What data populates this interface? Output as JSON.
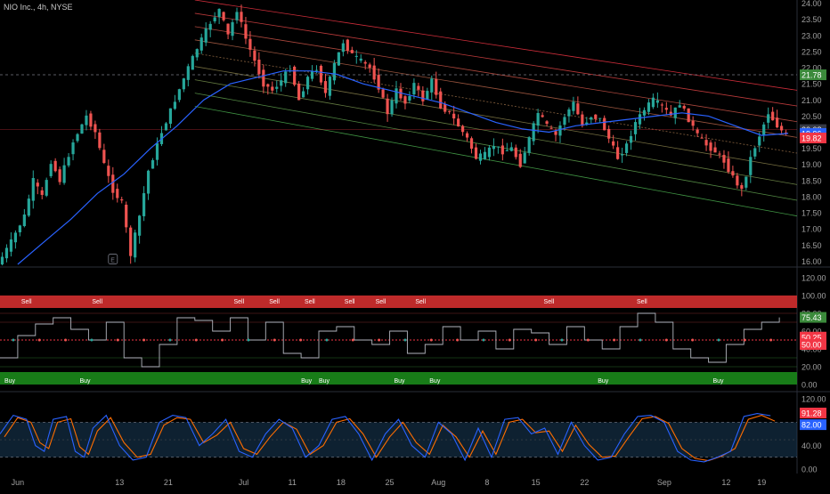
{
  "title": "NIO Inc., 4h, NYSE",
  "colors": {
    "bg": "#000000",
    "up": "#26a69a",
    "down": "#ef5350",
    "ma": "#2962ff",
    "channel_top": "#f23645",
    "channel_bottom": "#4caf50",
    "rsi_line": "#b2b5be",
    "sell_band": "#d32f2f",
    "buy_band": "#1b8a1b",
    "stoch_k": "#2962ff",
    "stoch_d": "#ff6d00"
  },
  "chart_data": [
    {
      "type": "candlestick",
      "name": "price",
      "y_ticks": [
        "24.00",
        "23.50",
        "23.00",
        "22.50",
        "22.00",
        "21.50",
        "21.00",
        "20.50",
        "20.00",
        "19.50",
        "19.00",
        "18.50",
        "18.00",
        "17.50",
        "17.00",
        "16.50",
        "16.00"
      ],
      "ylim": [
        15.9,
        24.1
      ],
      "price_labels": [
        {
          "value": 21.78,
          "text": "21.78",
          "color": "#3b8a3b"
        },
        {
          "value": 20.08,
          "text": "20.08",
          "color": "#363a45"
        },
        {
          "value": 19.96,
          "text": "19.96",
          "color": "#2962ff"
        },
        {
          "value": 19.82,
          "text": "19.82",
          "color": "#f23645"
        }
      ],
      "dashed_level": 21.78,
      "path_points": [
        [
          0,
          15.9
        ],
        [
          3,
          16.6
        ],
        [
          6,
          17.4
        ],
        [
          8,
          18.5
        ],
        [
          10,
          18.0
        ],
        [
          12,
          19.1
        ],
        [
          14,
          18.5
        ],
        [
          17,
          19.7
        ],
        [
          20,
          20.5
        ],
        [
          22,
          20.0
        ],
        [
          24,
          19.0
        ],
        [
          26,
          18.2
        ],
        [
          28,
          17.8
        ],
        [
          30,
          16.2
        ],
        [
          32,
          17.4
        ],
        [
          34,
          18.8
        ],
        [
          37,
          20.0
        ],
        [
          40,
          21.0
        ],
        [
          43,
          22.0
        ],
        [
          45,
          22.6
        ],
        [
          48,
          23.4
        ],
        [
          50,
          23.8
        ],
        [
          52,
          23.0
        ],
        [
          54,
          23.8
        ],
        [
          56,
          22.9
        ],
        [
          58,
          22.2
        ],
        [
          60,
          21.5
        ],
        [
          62,
          21.3
        ],
        [
          64,
          21.6
        ],
        [
          66,
          22.0
        ],
        [
          68,
          21.0
        ],
        [
          70,
          21.7
        ],
        [
          72,
          22.0
        ],
        [
          74,
          21.2
        ],
        [
          76,
          22.1
        ],
        [
          78,
          22.8
        ],
        [
          80,
          22.4
        ],
        [
          82,
          22.2
        ],
        [
          84,
          22.0
        ],
        [
          86,
          21.4
        ],
        [
          88,
          20.6
        ],
        [
          90,
          21.3
        ],
        [
          92,
          20.9
        ],
        [
          94,
          21.5
        ],
        [
          96,
          21.0
        ],
        [
          98,
          21.6
        ],
        [
          100,
          20.8
        ],
        [
          102,
          20.6
        ],
        [
          104,
          20.2
        ],
        [
          106,
          19.8
        ],
        [
          108,
          19.2
        ],
        [
          110,
          19.3
        ],
        [
          112,
          19.6
        ],
        [
          114,
          19.4
        ],
        [
          116,
          19.5
        ],
        [
          118,
          19.0
        ],
        [
          120,
          19.8
        ],
        [
          122,
          20.6
        ],
        [
          124,
          20.2
        ],
        [
          126,
          19.9
        ],
        [
          128,
          20.5
        ],
        [
          130,
          20.9
        ],
        [
          132,
          20.2
        ],
        [
          134,
          20.5
        ],
        [
          136,
          20.4
        ],
        [
          138,
          19.8
        ],
        [
          140,
          19.2
        ],
        [
          142,
          19.6
        ],
        [
          144,
          20.3
        ],
        [
          146,
          20.7
        ],
        [
          148,
          21.0
        ],
        [
          150,
          20.8
        ],
        [
          152,
          20.5
        ],
        [
          154,
          20.9
        ],
        [
          156,
          20.4
        ],
        [
          158,
          19.9
        ],
        [
          160,
          19.6
        ],
        [
          162,
          19.4
        ],
        [
          164,
          19.1
        ],
        [
          166,
          18.6
        ],
        [
          168,
          18.2
        ],
        [
          170,
          19.2
        ],
        [
          172,
          19.9
        ],
        [
          174,
          20.6
        ],
        [
          176,
          20.2
        ],
        [
          178,
          19.9
        ]
      ],
      "ma_points": [
        [
          4,
          15.9
        ],
        [
          10,
          16.6
        ],
        [
          16,
          17.3
        ],
        [
          22,
          18.1
        ],
        [
          28,
          18.7
        ],
        [
          34,
          19.5
        ],
        [
          40,
          20.2
        ],
        [
          46,
          21.0
        ],
        [
          52,
          21.5
        ],
        [
          58,
          21.7
        ],
        [
          64,
          21.9
        ],
        [
          70,
          21.9
        ],
        [
          76,
          21.8
        ],
        [
          82,
          21.5
        ],
        [
          88,
          21.3
        ],
        [
          94,
          21.1
        ],
        [
          100,
          20.9
        ],
        [
          106,
          20.6
        ],
        [
          112,
          20.3
        ],
        [
          118,
          20.1
        ],
        [
          124,
          20.0
        ],
        [
          130,
          20.2
        ],
        [
          136,
          20.3
        ],
        [
          142,
          20.4
        ],
        [
          148,
          20.5
        ],
        [
          154,
          20.6
        ],
        [
          160,
          20.5
        ],
        [
          166,
          20.2
        ],
        [
          172,
          19.9
        ],
        [
          178,
          19.96
        ]
      ],
      "channel": {
        "x_start": 44,
        "x_end": 180,
        "top_start": 24.1,
        "top_end": 21.3,
        "bottom_start": 20.8,
        "bottom_end": 17.4,
        "lines": 9
      }
    },
    {
      "type": "line",
      "name": "rsi",
      "y_ticks": [
        "120.00",
        "100.00",
        "80.00",
        "60.00",
        "40.00",
        "20.00",
        "0.00"
      ],
      "ylim": [
        -5,
        125
      ],
      "current": {
        "value": 75.43,
        "text": "75.43",
        "color": "#3b8a3b"
      },
      "labels_right": [
        {
          "value": 50.25,
          "text": "50.25",
          "color": "#f23645"
        },
        {
          "value": 50.0,
          "text": "50.00",
          "color": "#f23645"
        }
      ],
      "bands": {
        "sell": [
          86,
          100
        ],
        "buy": [
          0,
          14
        ]
      },
      "levels": [
        80,
        70,
        50,
        30,
        20
      ],
      "sell_labels": [
        [
          "Sell",
          6
        ],
        [
          "Sell",
          22
        ],
        [
          "Sell",
          54
        ],
        [
          "Sell",
          62
        ],
        [
          "Sell",
          70
        ],
        [
          "Sell",
          79
        ],
        [
          "Sell",
          86
        ],
        [
          "Sell",
          95
        ],
        [
          "Sell",
          124
        ],
        [
          "Sell",
          145
        ]
      ],
      "buy_labels": [
        [
          "Buy",
          2
        ],
        [
          "Buy",
          19
        ],
        [
          "Buy",
          69
        ],
        [
          "Buy",
          73
        ],
        [
          "Buy",
          90
        ],
        [
          "Buy",
          98
        ],
        [
          "Buy",
          136
        ],
        [
          "Buy",
          162
        ]
      ],
      "points": [
        [
          0,
          30
        ],
        [
          4,
          55
        ],
        [
          8,
          68
        ],
        [
          12,
          75
        ],
        [
          16,
          62
        ],
        [
          20,
          50
        ],
        [
          24,
          70
        ],
        [
          28,
          30
        ],
        [
          32,
          20
        ],
        [
          36,
          45
        ],
        [
          40,
          75
        ],
        [
          44,
          72
        ],
        [
          48,
          60
        ],
        [
          52,
          75
        ],
        [
          56,
          50
        ],
        [
          60,
          70
        ],
        [
          64,
          35
        ],
        [
          68,
          30
        ],
        [
          72,
          60
        ],
        [
          76,
          65
        ],
        [
          80,
          50
        ],
        [
          84,
          45
        ],
        [
          88,
          60
        ],
        [
          92,
          35
        ],
        [
          96,
          45
        ],
        [
          100,
          65
        ],
        [
          104,
          50
        ],
        [
          108,
          60
        ],
        [
          112,
          40
        ],
        [
          116,
          62
        ],
        [
          120,
          58
        ],
        [
          124,
          45
        ],
        [
          128,
          65
        ],
        [
          132,
          50
        ],
        [
          136,
          40
        ],
        [
          140,
          65
        ],
        [
          144,
          80
        ],
        [
          148,
          70
        ],
        [
          152,
          40
        ],
        [
          156,
          30
        ],
        [
          160,
          25
        ],
        [
          164,
          45
        ],
        [
          168,
          62
        ],
        [
          172,
          70
        ],
        [
          176,
          75.43
        ]
      ]
    },
    {
      "type": "line",
      "name": "stochastic",
      "y_ticks": [
        "120.00",
        "80.00",
        "40.00",
        "0.00"
      ],
      "ylim": [
        -8,
        128
      ],
      "labels_right": [
        {
          "value": 91.28,
          "text": "91.28",
          "color": "#f23645"
        },
        {
          "value": 82.0,
          "text": "82.00",
          "color": "#2962ff"
        }
      ],
      "bands": [
        20,
        80
      ],
      "k_points": [
        [
          0,
          60
        ],
        [
          3,
          92
        ],
        [
          6,
          85
        ],
        [
          8,
          40
        ],
        [
          10,
          30
        ],
        [
          12,
          85
        ],
        [
          15,
          90
        ],
        [
          17,
          30
        ],
        [
          19,
          20
        ],
        [
          21,
          70
        ],
        [
          24,
          92
        ],
        [
          27,
          40
        ],
        [
          30,
          15
        ],
        [
          33,
          20
        ],
        [
          36,
          80
        ],
        [
          39,
          92
        ],
        [
          42,
          88
        ],
        [
          45,
          40
        ],
        [
          48,
          60
        ],
        [
          51,
          85
        ],
        [
          54,
          30
        ],
        [
          57,
          20
        ],
        [
          60,
          60
        ],
        [
          63,
          85
        ],
        [
          66,
          70
        ],
        [
          69,
          20
        ],
        [
          72,
          40
        ],
        [
          75,
          85
        ],
        [
          78,
          90
        ],
        [
          81,
          60
        ],
        [
          84,
          15
        ],
        [
          87,
          60
        ],
        [
          90,
          85
        ],
        [
          93,
          40
        ],
        [
          96,
          20
        ],
        [
          99,
          80
        ],
        [
          102,
          60
        ],
        [
          105,
          15
        ],
        [
          108,
          70
        ],
        [
          111,
          20
        ],
        [
          114,
          85
        ],
        [
          117,
          88
        ],
        [
          120,
          60
        ],
        [
          123,
          70
        ],
        [
          126,
          25
        ],
        [
          129,
          80
        ],
        [
          132,
          40
        ],
        [
          135,
          15
        ],
        [
          138,
          20
        ],
        [
          141,
          60
        ],
        [
          144,
          90
        ],
        [
          147,
          92
        ],
        [
          150,
          80
        ],
        [
          153,
          30
        ],
        [
          156,
          15
        ],
        [
          159,
          12
        ],
        [
          162,
          20
        ],
        [
          165,
          30
        ],
        [
          168,
          90
        ],
        [
          171,
          95
        ],
        [
          174,
          91.28
        ]
      ],
      "d_points": [
        [
          1,
          55
        ],
        [
          4,
          88
        ],
        [
          7,
          80
        ],
        [
          9,
          45
        ],
        [
          11,
          35
        ],
        [
          13,
          80
        ],
        [
          16,
          86
        ],
        [
          18,
          38
        ],
        [
          20,
          25
        ],
        [
          22,
          65
        ],
        [
          25,
          88
        ],
        [
          28,
          45
        ],
        [
          31,
          20
        ],
        [
          34,
          25
        ],
        [
          37,
          75
        ],
        [
          40,
          88
        ],
        [
          43,
          85
        ],
        [
          46,
          45
        ],
        [
          49,
          58
        ],
        [
          52,
          80
        ],
        [
          55,
          35
        ],
        [
          58,
          25
        ],
        [
          61,
          55
        ],
        [
          64,
          80
        ],
        [
          67,
          68
        ],
        [
          70,
          25
        ],
        [
          73,
          40
        ],
        [
          76,
          80
        ],
        [
          79,
          86
        ],
        [
          82,
          60
        ],
        [
          85,
          20
        ],
        [
          88,
          55
        ],
        [
          91,
          80
        ],
        [
          94,
          45
        ],
        [
          97,
          25
        ],
        [
          100,
          75
        ],
        [
          103,
          55
        ],
        [
          106,
          20
        ],
        [
          109,
          65
        ],
        [
          112,
          25
        ],
        [
          115,
          80
        ],
        [
          118,
          85
        ],
        [
          121,
          62
        ],
        [
          124,
          65
        ],
        [
          127,
          30
        ],
        [
          130,
          75
        ],
        [
          133,
          42
        ],
        [
          136,
          20
        ],
        [
          139,
          22
        ],
        [
          142,
          55
        ],
        [
          145,
          86
        ],
        [
          148,
          90
        ],
        [
          151,
          78
        ],
        [
          154,
          35
        ],
        [
          157,
          18
        ],
        [
          160,
          14
        ],
        [
          163,
          22
        ],
        [
          166,
          35
        ],
        [
          169,
          85
        ],
        [
          172,
          92
        ],
        [
          175,
          82
        ]
      ]
    }
  ],
  "x_axis": {
    "labels": [
      [
        "Jun",
        4
      ],
      [
        "13",
        27
      ],
      [
        "21",
        38
      ],
      [
        "Jul",
        55
      ],
      [
        "11",
        66
      ],
      [
        "18",
        77
      ],
      [
        "25",
        88
      ],
      [
        "Aug",
        99
      ],
      [
        "8",
        110
      ],
      [
        "15",
        121
      ],
      [
        "22",
        132
      ],
      [
        "Sep",
        150
      ],
      [
        "12",
        164
      ],
      [
        "19",
        172
      ]
    ],
    "span": 180
  }
}
